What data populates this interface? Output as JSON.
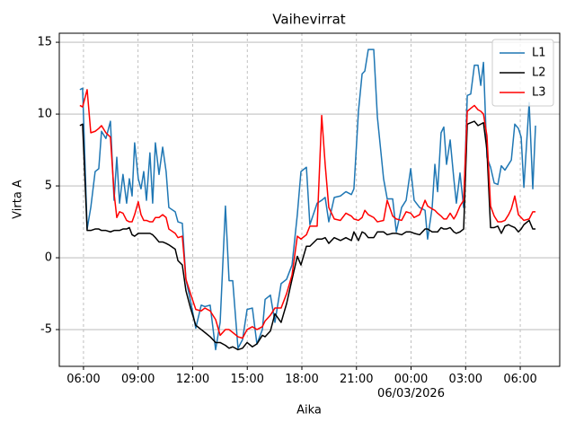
{
  "chart_data": {
    "type": "line",
    "title": "Vaihevirrat",
    "xlabel": "Aika",
    "ylabel": "Virta A",
    "x": [
      5.8,
      5.95,
      6.2,
      6.4,
      6.64,
      6.84,
      6.99,
      7.23,
      7.48,
      7.68,
      7.83,
      7.98,
      8.17,
      8.37,
      8.52,
      8.67,
      8.81,
      9.01,
      9.16,
      9.31,
      9.46,
      9.65,
      9.8,
      9.95,
      10.15,
      10.35,
      10.54,
      10.69,
      11.04,
      11.19,
      11.43,
      11.63,
      11.88,
      12.17,
      12.47,
      12.67,
      12.96,
      13.26,
      13.51,
      13.8,
      14.0,
      14.2,
      14.49,
      14.74,
      14.99,
      15.28,
      15.53,
      15.83,
      15.98,
      16.27,
      16.52,
      16.86,
      17.16,
      17.46,
      17.75,
      17.95,
      18.25,
      18.44,
      18.84,
      19.09,
      19.28,
      19.48,
      19.78,
      20.12,
      20.42,
      20.72,
      20.86,
      21.11,
      21.31,
      21.46,
      21.65,
      21.95,
      22.15,
      22.49,
      22.69,
      22.99,
      23.19,
      23.48,
      23.73,
      23.98,
      24.17,
      24.47,
      24.77,
      24.91,
      25.16,
      25.31,
      25.46,
      25.65,
      25.8,
      25.95,
      26.15,
      26.35,
      26.49,
      26.69,
      26.89,
      27.09,
      27.28,
      27.48,
      27.68,
      27.83,
      27.98,
      28.17,
      28.37,
      28.57,
      28.77,
      28.96,
      29.16,
      29.36,
      29.51,
      29.7,
      29.9,
      30.05,
      30.2,
      30.49,
      30.69,
      30.84
    ],
    "series": [
      {
        "name": "L1",
        "color": "#1f77b4",
        "values": [
          11.7,
          11.8,
          2.0,
          3.5,
          6,
          6.2,
          8.8,
          8.3,
          9.5,
          4,
          7,
          3.8,
          5.8,
          3.8,
          5.5,
          4.3,
          8,
          5.5,
          4.8,
          6,
          4,
          7.3,
          3.8,
          8,
          5.8,
          7.7,
          6,
          3.5,
          3.2,
          2.5,
          2.4,
          -1.5,
          -3,
          -4.9,
          -3.3,
          -3.4,
          -3.3,
          -6.4,
          -4.5,
          3.6,
          -1.6,
          -1.6,
          -6.3,
          -5.7,
          -3.6,
          -3.5,
          -6,
          -5,
          -2.9,
          -2.6,
          -4.5,
          -1.8,
          -1.5,
          -0.5,
          3,
          6,
          6.3,
          2.3,
          3.8,
          4,
          4.2,
          2.5,
          4.2,
          4.3,
          4.6,
          4.4,
          4.8,
          10.2,
          12.8,
          13,
          14.5,
          14.5,
          9.8,
          5.5,
          4.1,
          4.1,
          1.8,
          3.5,
          4,
          6.2,
          4,
          3.5,
          3.3,
          1.3,
          3.5,
          6.5,
          4.6,
          8.7,
          9.1,
          6.5,
          8.2,
          5.5,
          3.8,
          5.9,
          3.5,
          11.3,
          11.4,
          13.4,
          13.4,
          12,
          13.6,
          7,
          6.3,
          5.2,
          5.1,
          6.4,
          6.1,
          6.5,
          6.8,
          9.3,
          9,
          8.4,
          4.9,
          10.8,
          4.8,
          9.2
        ]
      },
      {
        "name": "L2",
        "color": "#000000",
        "values": [
          9.2,
          9.3,
          1.9,
          1.9,
          2.0,
          2.0,
          1.9,
          1.9,
          1.8,
          1.9,
          1.9,
          1.9,
          2.0,
          2.0,
          2.1,
          1.6,
          1.5,
          1.7,
          1.7,
          1.7,
          1.7,
          1.7,
          1.6,
          1.4,
          1.1,
          1.1,
          1.0,
          0.9,
          0.6,
          -0.2,
          -0.5,
          -2.3,
          -3.5,
          -4.7,
          -5.0,
          -5.2,
          -5.5,
          -5.9,
          -5.9,
          -6.1,
          -6.3,
          -6.2,
          -6.4,
          -6.3,
          -5.9,
          -6.2,
          -6.0,
          -5.4,
          -5.5,
          -5.1,
          -3.9,
          -4.5,
          -3.2,
          -1.5,
          0.1,
          -0.5,
          0.8,
          0.8,
          1.3,
          1.3,
          1.4,
          1.0,
          1.4,
          1.2,
          1.4,
          1.2,
          1.8,
          1.2,
          1.8,
          1.7,
          1.4,
          1.4,
          1.8,
          1.8,
          1.6,
          1.7,
          1.7,
          1.6,
          1.8,
          1.8,
          1.7,
          1.6,
          2.0,
          2.0,
          1.8,
          1.8,
          1.8,
          2.1,
          2.0,
          2.0,
          2.1,
          1.8,
          1.7,
          1.8,
          2.0,
          9.3,
          9.4,
          9.5,
          9.2,
          9.3,
          9.4,
          7.5,
          2.1,
          2.1,
          2.2,
          1.7,
          2.2,
          2.3,
          2.2,
          2.1,
          1.8,
          2.0,
          2.3,
          2.6,
          2.0,
          2.0
        ]
      },
      {
        "name": "L3",
        "color": "#ff0000",
        "values": [
          10.6,
          10.5,
          11.7,
          8.7,
          8.8,
          9.0,
          9.2,
          8.7,
          8.4,
          4.5,
          2.8,
          3.2,
          3.1,
          2.6,
          2.5,
          2.5,
          3.0,
          3.9,
          3.0,
          2.6,
          2.6,
          2.5,
          2.5,
          2.8,
          2.8,
          3.0,
          2.8,
          2.0,
          1.7,
          1.4,
          1.5,
          -1.5,
          -2.5,
          -3.6,
          -3.7,
          -3.5,
          -3.7,
          -4.3,
          -5.4,
          -5.0,
          -5.0,
          -5.2,
          -5.5,
          -5.6,
          -5.0,
          -4.8,
          -5.0,
          -4.8,
          -4.4,
          -4.0,
          -3.5,
          -3.5,
          -2.5,
          -1.2,
          1.5,
          1.3,
          1.6,
          2.2,
          2.2,
          9.9,
          6.5,
          3.5,
          2.7,
          2.6,
          3.1,
          2.9,
          2.7,
          2.6,
          2.8,
          3.3,
          3.0,
          2.8,
          2.5,
          2.6,
          4.0,
          2.9,
          2.7,
          2.6,
          3.2,
          3.1,
          2.8,
          3.0,
          4.0,
          3.6,
          3.4,
          3.3,
          3.1,
          2.9,
          2.7,
          2.7,
          3.1,
          2.7,
          3.0,
          3.6,
          4.0,
          10.2,
          10.4,
          10.6,
          10.3,
          10.2,
          10.0,
          8.5,
          3.6,
          2.9,
          2.5,
          2.5,
          2.6,
          3.0,
          3.4,
          4.3,
          3.0,
          2.8,
          2.6,
          2.7,
          3.2,
          3.2
        ]
      }
    ],
    "xlim": [
      4.67,
      32.17
    ],
    "ylim": [
      -7.56,
      15.63
    ],
    "xticks": [
      {
        "value": 6,
        "label": "06:00"
      },
      {
        "value": 9,
        "label": "09:00"
      },
      {
        "value": 12,
        "label": "12:00"
      },
      {
        "value": 15,
        "label": "15:00"
      },
      {
        "value": 18,
        "label": "18:00"
      },
      {
        "value": 21,
        "label": "21:00"
      },
      {
        "value": 24,
        "label": "00:00\n06/03/2026"
      },
      {
        "value": 27,
        "label": "03:00"
      },
      {
        "value": 30,
        "label": "06:00"
      }
    ],
    "yticks": [
      -5,
      0,
      5,
      10,
      15
    ],
    "grid": true,
    "legend": "upper right"
  }
}
